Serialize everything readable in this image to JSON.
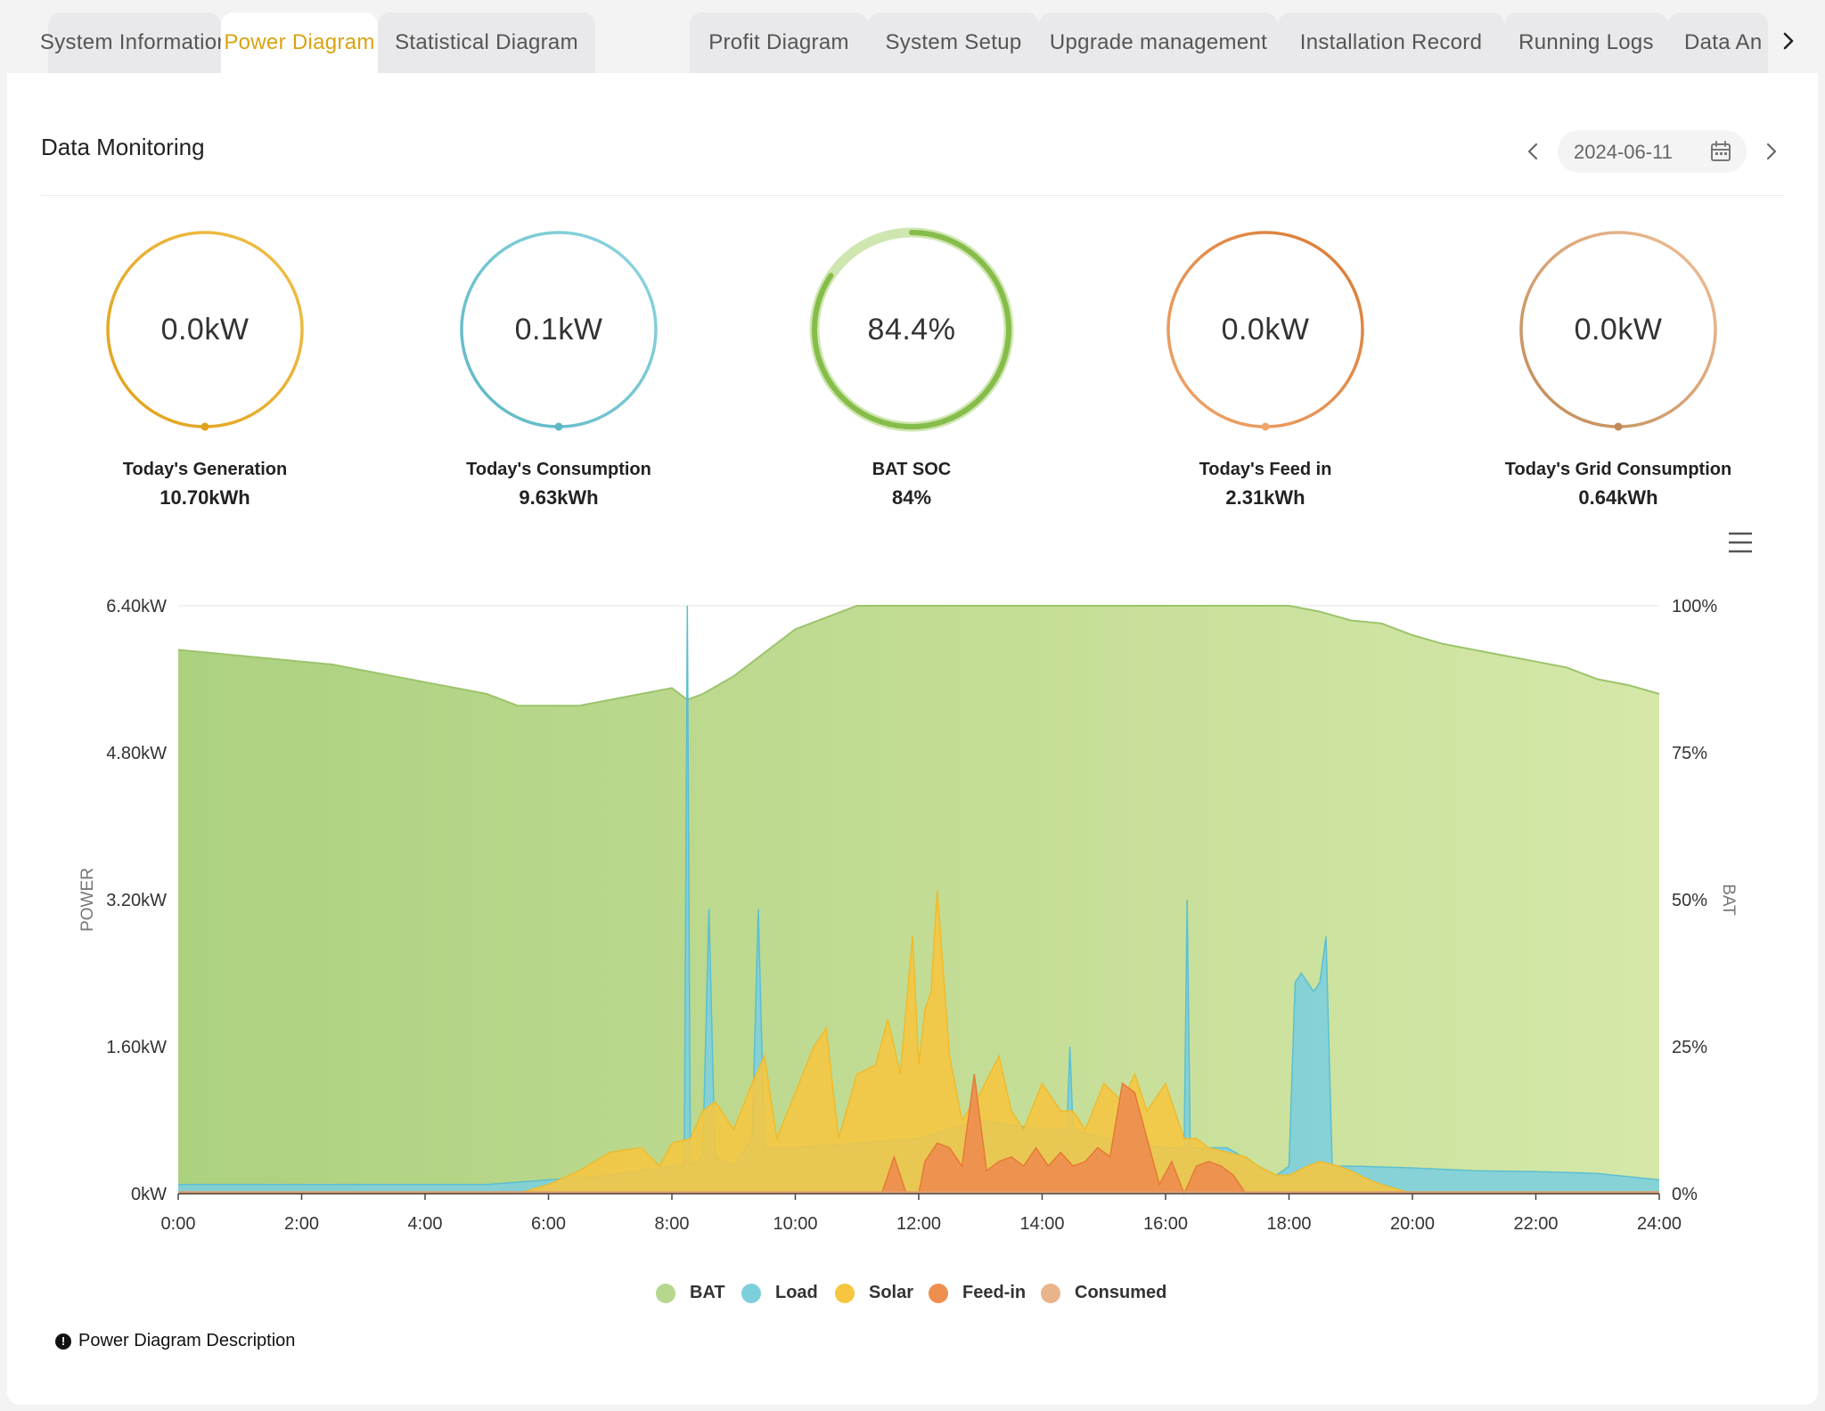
{
  "tabs": [
    {
      "label": "System Information",
      "active": false
    },
    {
      "label": "Power Diagram",
      "active": true
    },
    {
      "label": "Statistical Diagram",
      "active": false
    },
    {
      "label": "Profit Diagram",
      "active": false
    },
    {
      "label": "System Setup",
      "active": false
    },
    {
      "label": "Upgrade management",
      "active": false
    },
    {
      "label": "Installation Record",
      "active": false
    },
    {
      "label": "Running Logs",
      "active": false
    },
    {
      "label": "Data An",
      "active": false
    }
  ],
  "page": {
    "title": "Data Monitoring",
    "date": "2024-06-11",
    "description_link": "Power Diagram Description"
  },
  "gauges": [
    {
      "value": "0.0kW",
      "label": "Today's Generation",
      "sub": "10.70kWh",
      "colors": [
        "#e0a11c",
        "#f0c04a"
      ],
      "fill": 1.0
    },
    {
      "value": "0.1kW",
      "label": "Today's Consumption",
      "sub": "9.63kWh",
      "colors": [
        "#5cb7c4",
        "#8fd6df"
      ],
      "fill": 1.0
    },
    {
      "value": "84.4%",
      "label": "BAT SOC",
      "sub": "84%",
      "colors": [
        "#c6dfa0",
        "#86bd4a"
      ],
      "fill": 0.844
    },
    {
      "value": "0.0kW",
      "label": "Today's Feed in",
      "sub": "2.31kWh",
      "colors": [
        "#f0a56a",
        "#d97b36"
      ],
      "fill": 1.0
    },
    {
      "value": "0.0kW",
      "label": "Today's Grid Consumption",
      "sub": "0.64kWh",
      "colors": [
        "#c08a56",
        "#f0bf98"
      ],
      "fill": 1.0
    }
  ],
  "chart_data": {
    "type": "area",
    "ylabel": "POWER",
    "ylabel_right": "BAT",
    "ylim": [
      0,
      6.4
    ],
    "ylim_right": [
      0,
      100
    ],
    "y_ticks": [
      "0kW",
      "1.60kW",
      "3.20kW",
      "4.80kW",
      "6.40kW"
    ],
    "y_ticks_right": [
      "0%",
      "25%",
      "50%",
      "75%",
      "100%"
    ],
    "x_ticks": [
      "0:00",
      "2:00",
      "4:00",
      "6:00",
      "8:00",
      "10:00",
      "12:00",
      "14:00",
      "16:00",
      "18:00",
      "20:00",
      "22:00",
      "24:00"
    ],
    "legend_position": "bottom",
    "colors": {
      "BAT": "#b6d78e",
      "Load": "#7ecfdc",
      "Solar": "#f6c641",
      "Feed-in": "#ee8e4f",
      "Consumed": "#eab48a"
    },
    "series": [
      {
        "name": "BAT",
        "axis": "right",
        "x": [
          0,
          0.5,
          1,
          1.5,
          2,
          2.5,
          3,
          3.5,
          4,
          4.5,
          5,
          5.5,
          6,
          6.5,
          7,
          7.5,
          8,
          8.25,
          8.5,
          9,
          9.5,
          10,
          10.5,
          11,
          11.5,
          12,
          13,
          14,
          15,
          16,
          17,
          18,
          18.5,
          19,
          19.5,
          20,
          20.5,
          21,
          21.5,
          22,
          22.5,
          23,
          23.5,
          24
        ],
        "values": [
          92.5,
          92,
          91.5,
          91,
          90.5,
          90,
          89,
          88,
          87,
          86,
          85,
          83,
          83,
          83,
          84,
          85,
          86,
          84,
          85,
          88,
          92,
          96,
          98,
          100,
          100,
          100,
          100,
          100,
          100,
          100,
          100,
          100,
          99,
          97.5,
          97,
          95,
          93.5,
          92.5,
          91.5,
          90.5,
          89.5,
          87.5,
          86.5,
          85
        ]
      },
      {
        "name": "Load",
        "axis": "left",
        "x": [
          0,
          0.5,
          1,
          2,
          3,
          4,
          5,
          6,
          7,
          8,
          8.2,
          8.25,
          8.3,
          8.5,
          8.6,
          8.7,
          9,
          9.3,
          9.4,
          9.5,
          10,
          12,
          13,
          14,
          14.4,
          14.45,
          14.5,
          15,
          16,
          16.3,
          16.35,
          16.4,
          17,
          17.5,
          17.8,
          18,
          18.1,
          18.2,
          18.3,
          18.4,
          18.5,
          18.6,
          18.7,
          19,
          20,
          21,
          22,
          23,
          24
        ],
        "values": [
          0.1,
          0.1,
          0.1,
          0.1,
          0.1,
          0.1,
          0.1,
          0.15,
          0.2,
          0.3,
          0.3,
          6.4,
          0.3,
          0.4,
          3.1,
          0.4,
          0.3,
          0.6,
          3.1,
          0.5,
          0.5,
          0.6,
          0.8,
          0.7,
          0.7,
          1.6,
          0.7,
          0.6,
          0.5,
          0.5,
          3.2,
          0.5,
          0.5,
          0.3,
          0.2,
          0.3,
          2.3,
          2.4,
          2.3,
          2.2,
          2.3,
          2.8,
          0.3,
          0.3,
          0.28,
          0.25,
          0.24,
          0.22,
          0.15
        ]
      },
      {
        "name": "Solar",
        "axis": "left",
        "x": [
          0,
          5.5,
          6,
          6.5,
          7,
          7.5,
          7.8,
          8,
          8.3,
          8.5,
          8.7,
          9,
          9.3,
          9.5,
          9.7,
          10,
          10.3,
          10.5,
          10.7,
          11,
          11.3,
          11.5,
          11.7,
          11.9,
          12,
          12.1,
          12.2,
          12.3,
          12.5,
          12.7,
          13,
          13.3,
          13.5,
          13.7,
          14,
          14.3,
          14.5,
          14.7,
          15,
          15.3,
          15.5,
          15.7,
          16,
          16.3,
          16.5,
          16.7,
          17,
          17.3,
          17.5,
          17.8,
          18,
          18.3,
          18.5,
          18.8,
          19,
          19.3,
          19.5,
          20,
          24
        ],
        "values": [
          0,
          0,
          0.1,
          0.25,
          0.45,
          0.5,
          0.3,
          0.55,
          0.6,
          0.9,
          1.0,
          0.7,
          1.2,
          1.5,
          0.6,
          1.1,
          1.6,
          1.8,
          0.6,
          1.3,
          1.4,
          1.9,
          1.3,
          2.8,
          1.4,
          2.0,
          2.2,
          3.3,
          1.5,
          0.8,
          1.1,
          1.5,
          0.9,
          0.7,
          1.2,
          0.9,
          0.9,
          0.7,
          1.2,
          1.0,
          1.3,
          0.9,
          1.2,
          0.6,
          0.6,
          0.5,
          0.45,
          0.4,
          0.3,
          0.2,
          0.2,
          0.3,
          0.35,
          0.3,
          0.25,
          0.15,
          0.1,
          0,
          0
        ]
      },
      {
        "name": "Feed-in",
        "axis": "left",
        "x": [
          0,
          11,
          11.4,
          11.6,
          11.8,
          12,
          12.1,
          12.3,
          12.5,
          12.7,
          12.9,
          13.1,
          13.3,
          13.5,
          13.7,
          13.9,
          14.1,
          14.3,
          14.5,
          14.7,
          14.9,
          15.1,
          15.3,
          15.5,
          15.7,
          15.9,
          16.1,
          16.3,
          16.5,
          16.7,
          16.9,
          17.1,
          17.3,
          17.5,
          18,
          24
        ],
        "values": [
          0,
          0,
          0,
          0.4,
          0,
          0,
          0.35,
          0.55,
          0.5,
          0.3,
          1.3,
          0.25,
          0.35,
          0.4,
          0.3,
          0.5,
          0.3,
          0.45,
          0.3,
          0.35,
          0.5,
          0.4,
          1.2,
          1.1,
          0.6,
          0.1,
          0.35,
          0,
          0.3,
          0.35,
          0.3,
          0.2,
          0,
          0,
          0,
          0
        ]
      },
      {
        "name": "Consumed",
        "axis": "left",
        "x": [
          0,
          24
        ],
        "values": [
          0.02,
          0.02
        ]
      }
    ]
  }
}
